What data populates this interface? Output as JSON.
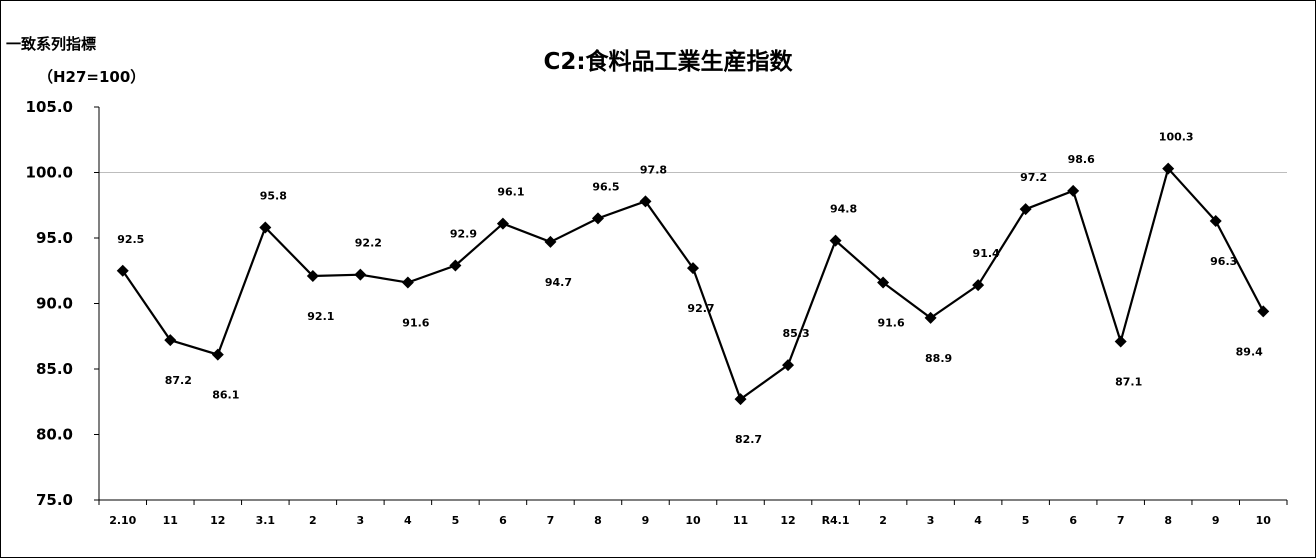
{
  "header": {
    "corner_label": "一致系列指標",
    "unit_label": "（H27=100）"
  },
  "chart_data": {
    "type": "line",
    "title": "C2:食料品工業生産指数",
    "categories": [
      "2.10",
      "11",
      "12",
      "3.1",
      "2",
      "3",
      "4",
      "5",
      "6",
      "7",
      "8",
      "9",
      "10",
      "11",
      "12",
      "R4.1",
      "2",
      "3",
      "4",
      "5",
      "6",
      "7",
      "8",
      "9",
      "10"
    ],
    "series": [
      {
        "values": [
          92.5,
          87.2,
          86.1,
          95.8,
          92.1,
          92.2,
          91.6,
          92.9,
          96.1,
          94.7,
          96.5,
          97.8,
          92.7,
          82.7,
          85.3,
          94.8,
          91.6,
          88.9,
          91.4,
          97.2,
          98.6,
          87.1,
          100.3,
          96.3,
          89.4
        ],
        "labels": [
          "92.5",
          "87.2",
          "86.1",
          "95.8",
          "92.1",
          "92.2",
          "91.6",
          "92.9",
          "96.1",
          "94.7",
          "96.5",
          "97.8",
          "92.7",
          "82.7",
          "85.3",
          "94.8",
          "91.6",
          "88.9",
          "91.4",
          "97.2",
          "98.6",
          "87.1",
          "100.3",
          "96.3",
          "89.4"
        ],
        "label_side": [
          "above",
          "below",
          "below",
          "above",
          "below",
          "above",
          "below",
          "above",
          "above",
          "below",
          "above",
          "above",
          "below",
          "below",
          "above",
          "above",
          "below",
          "below",
          "above",
          "above",
          "above",
          "below",
          "above",
          "below",
          "below"
        ],
        "color": "#000000",
        "marker": "diamond"
      }
    ],
    "yticks": [
      "75.0",
      "80.0",
      "85.0",
      "90.0",
      "95.0",
      "100.0",
      "105.0"
    ],
    "ylim": [
      75,
      105
    ],
    "grid": "horizontal line at 100 only",
    "legend": "none"
  }
}
